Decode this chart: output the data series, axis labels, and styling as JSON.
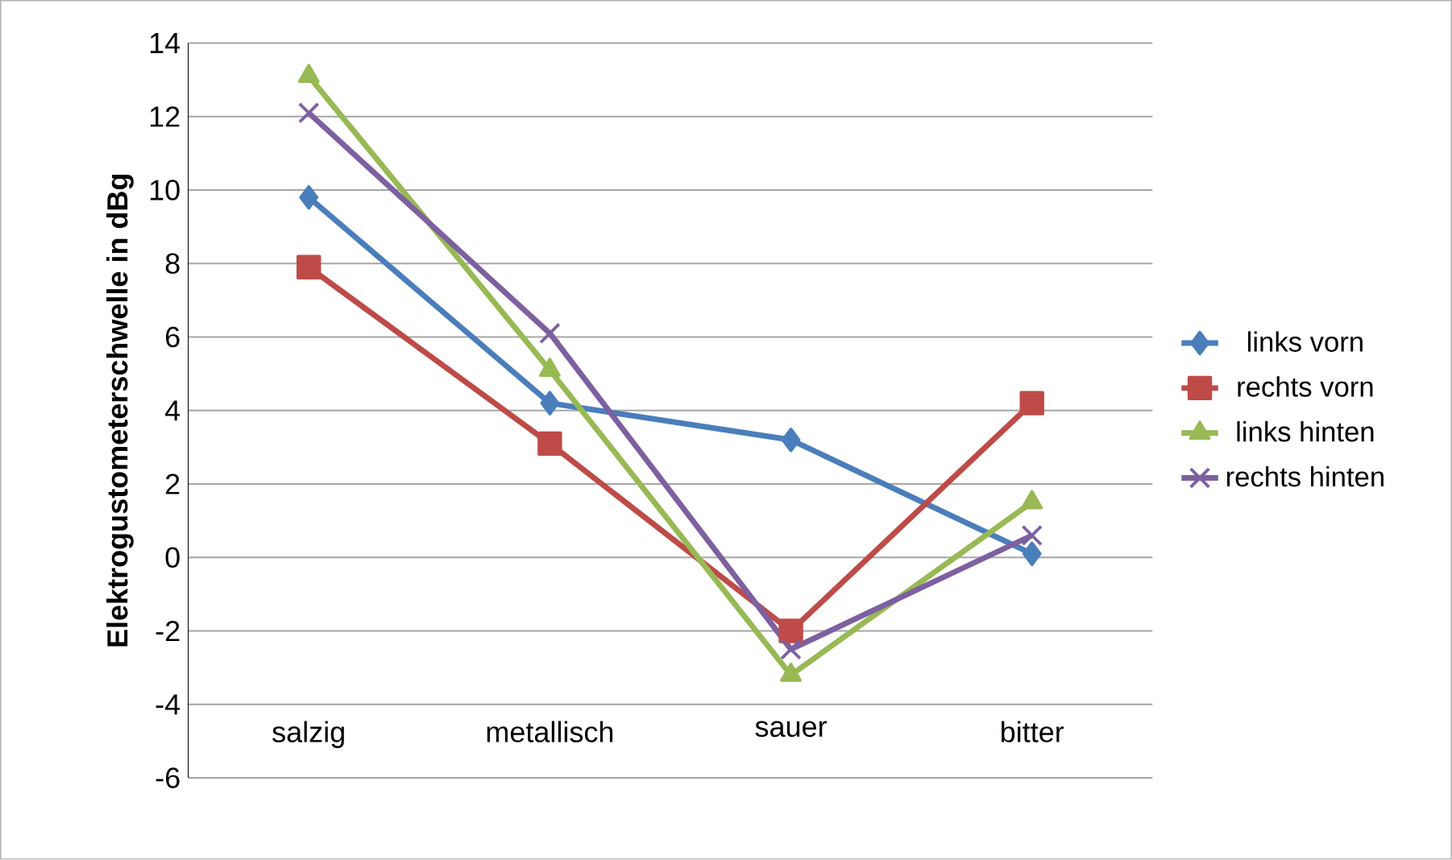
{
  "chart_data": {
    "type": "line",
    "ylabel": "Elektrogustometerschwelle in dBg",
    "categories": [
      "salzig",
      "metallisch",
      "sauer",
      "bitter"
    ],
    "series": [
      {
        "name": "links vorn",
        "color": "#4a7ebb",
        "marker": "diamond",
        "values": [
          9.8,
          4.2,
          3.2,
          0.1
        ]
      },
      {
        "name": "rechts vorn",
        "color": "#be4b48",
        "marker": "square",
        "values": [
          7.9,
          3.1,
          -2.0,
          4.2
        ]
      },
      {
        "name": "links hinten",
        "color": "#98b954",
        "marker": "triangle",
        "values": [
          13.1,
          5.1,
          -3.2,
          1.5
        ]
      },
      {
        "name": "rechts hinten",
        "color": "#7d60a0",
        "marker": "cross",
        "values": [
          12.1,
          6.1,
          -2.5,
          0.6
        ]
      }
    ],
    "ylim": [
      -6,
      14
    ],
    "yticks": [
      -6,
      -4,
      -2,
      0,
      2,
      4,
      6,
      8,
      10,
      12,
      14
    ],
    "grid": "y",
    "legend": "right",
    "line_style": "solid"
  }
}
